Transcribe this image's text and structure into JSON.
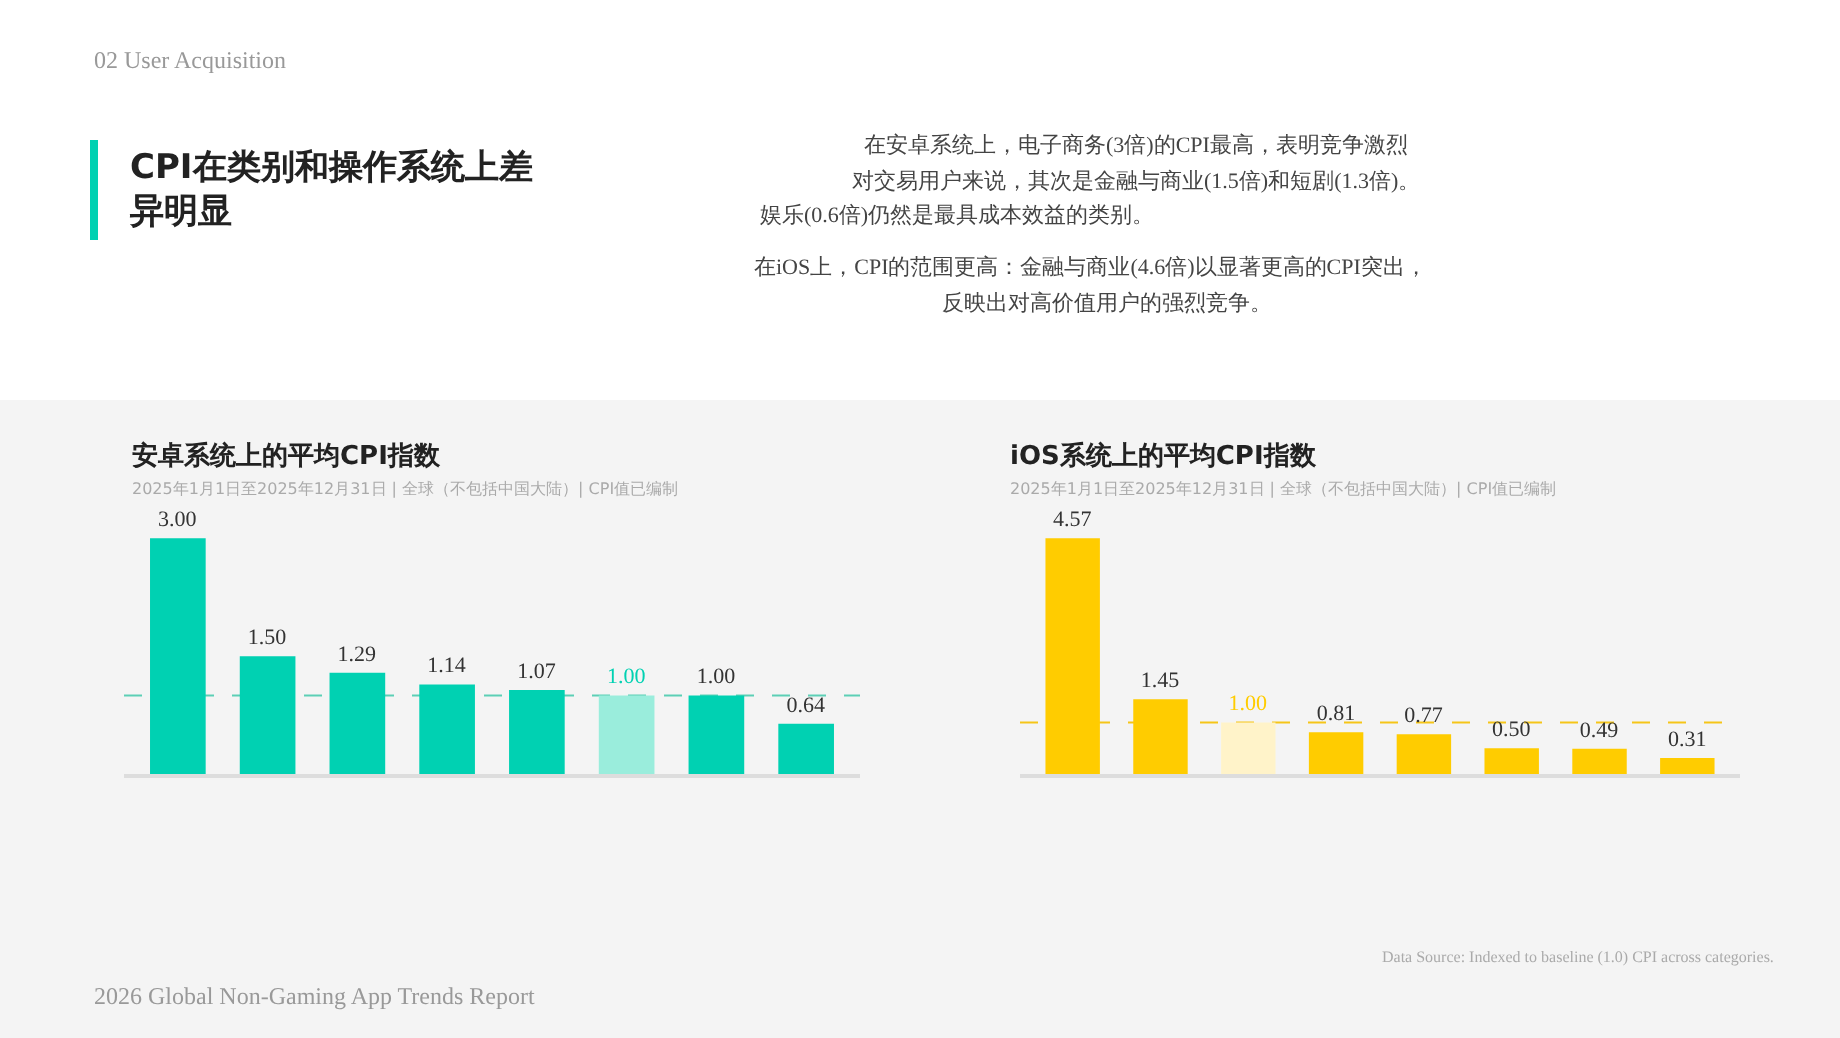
{
  "chart_data": [
    {
      "type": "other",
      "title": "CPI在类别和操作系统上差异明显",
      "subtitle": "02 User Acquisition",
      "annotations": [
        "在安卓系统上，电子商务(3倍)的CPI最高，表明竞争激烈",
        "对交易用户来说，其次是金融与商业(1.5倍)和短剧(1.3倍)。",
        "娱乐(0.6倍)仍然是最具成本效益的类别。",
        "在iOS上，CPI的范围更高：金融与商业(4.6倍)以显著更高的CPI突出，",
        "反映出对高价值用户的强烈竞争。",
        "2026 Global Non-Gaming App Trends Report"
      ]
    },
    {
      "type": "bar",
      "title": "安卓系统上的平均CPI指数",
      "subtitle": "2025年1月1日至2025年12月31日 | 全球（不包括中国大陆）| CPI值已编制",
      "categories": [
        null,
        null,
        null,
        null,
        null,
        null,
        null,
        null
      ],
      "values": [
        3.0,
        1.5,
        1.29,
        1.14,
        1.07,
        1.0,
        1.0,
        0.64
      ],
      "value_labels": [
        "3.00",
        "1.50",
        "1.29",
        "1.14",
        "1.07",
        "1.00",
        "1.00",
        "0.64"
      ],
      "colors": [
        "#00d1b2",
        "#00d1b2",
        "#00d1b2",
        "#00d1b2",
        "#00d1b2",
        "#9aeddc",
        "#00d1b2",
        "#00d1b2"
      ],
      "ref_lines": [
        {
          "axis": "y",
          "value": 1.0,
          "color": "#5ccfb5",
          "line_style": "dashed"
        }
      ]
    },
    {
      "type": "bar",
      "title": "iOS系统上的平均CPI指数",
      "subtitle": "2025年1月1日至2025年12月31日 | 全球（不包括中国大陆）| CPI值已编制",
      "categories": [
        null,
        null,
        null,
        null,
        null,
        null,
        null,
        null
      ],
      "values": [
        4.57,
        1.45,
        1.0,
        0.81,
        0.77,
        0.5,
        0.49,
        0.31
      ],
      "value_labels": [
        "4.57",
        "1.45",
        "1.00",
        "0.81",
        "0.77",
        "0.50",
        "0.49",
        "0.31"
      ],
      "colors": [
        "#ffcc00",
        "#ffcc00",
        "#fff3c9",
        "#ffcc00",
        "#ffcc00",
        "#ffcc00",
        "#ffcc00",
        "#ffcc00"
      ],
      "ref_lines": [
        {
          "axis": "y",
          "value": 1.0,
          "color": "#f5c518",
          "line_style": "dashed"
        }
      ],
      "annotations": [
        "Data Source: Indexed to baseline (1.0) CPI across categories."
      ]
    }
  ]
}
